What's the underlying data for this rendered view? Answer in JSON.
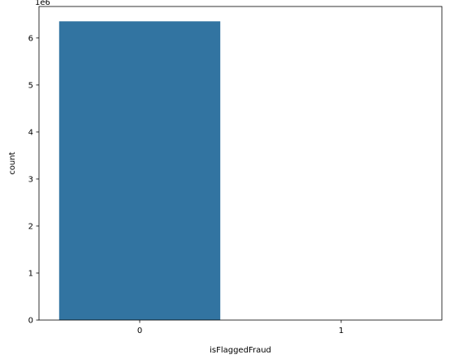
{
  "chart_data": {
    "type": "bar",
    "categories": [
      "0",
      "1"
    ],
    "values": [
      6354407,
      16
    ],
    "xlabel": "isFlaggedFraud",
    "ylabel": "count",
    "ylim": [
      0,
      6670000.0
    ],
    "yticks": [
      0,
      1000000,
      2000000,
      3000000,
      4000000,
      5000000,
      6000000
    ],
    "ytick_labels": [
      "0",
      "1",
      "2",
      "3",
      "4",
      "5",
      "6"
    ],
    "y_offset_label": "1e6",
    "bar_color": "#3274a1",
    "grid": false,
    "legend": "none"
  }
}
